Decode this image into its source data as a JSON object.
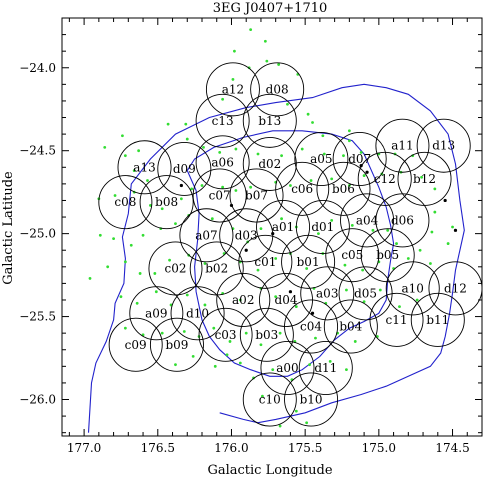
{
  "chart_data": {
    "type": "scatter",
    "title": "3EG J0407+1710",
    "xlabel": "Galactic Longitude",
    "ylabel": "Galactic Latitude",
    "xlim": [
      177.15,
      174.3
    ],
    "ylim": [
      -26.22,
      -23.7
    ],
    "x_reversed": true,
    "x_ticks": [
      177.0,
      176.5,
      176.0,
      175.5,
      175.0,
      174.5
    ],
    "y_ticks": [
      -24.0,
      -24.5,
      -25.0,
      -25.5,
      -26.0
    ],
    "x_tick_labels": [
      "177.0",
      "176.5",
      "176.0",
      "175.5",
      "175.0",
      "174.5"
    ],
    "y_tick_labels": [
      "−24.0",
      "−24.5",
      "−25.0",
      "−25.5",
      "−26.0"
    ],
    "grid": false,
    "legend": "none",
    "field_radius_deg": 0.16,
    "fields": [
      {
        "label": "a12",
        "l": 175.99,
        "b": -24.13
      },
      {
        "label": "d08",
        "l": 175.69,
        "b": -24.13
      },
      {
        "label": "c13",
        "l": 176.06,
        "b": -24.32
      },
      {
        "label": "b13",
        "l": 175.74,
        "b": -24.32
      },
      {
        "label": "a13",
        "l": 176.59,
        "b": -24.6
      },
      {
        "label": "d09",
        "l": 176.32,
        "b": -24.61
      },
      {
        "label": "a06",
        "l": 176.06,
        "b": -24.57
      },
      {
        "label": "d02",
        "l": 175.74,
        "b": -24.58
      },
      {
        "label": "a05",
        "l": 175.39,
        "b": -24.55
      },
      {
        "label": "d07",
        "l": 175.13,
        "b": -24.55
      },
      {
        "label": "a11",
        "l": 174.84,
        "b": -24.47
      },
      {
        "label": "d13",
        "l": 174.56,
        "b": -24.47
      },
      {
        "label": "c08",
        "l": 176.72,
        "b": -24.81
      },
      {
        "label": "b08",
        "l": 176.44,
        "b": -24.81
      },
      {
        "label": "c07",
        "l": 176.08,
        "b": -24.77
      },
      {
        "label": "b07",
        "l": 175.83,
        "b": -24.77
      },
      {
        "label": "c06",
        "l": 175.52,
        "b": -24.73
      },
      {
        "label": "b06",
        "l": 175.24,
        "b": -24.73
      },
      {
        "label": "c12",
        "l": 174.96,
        "b": -24.67
      },
      {
        "label": "b12",
        "l": 174.69,
        "b": -24.67
      },
      {
        "label": "a07",
        "l": 176.17,
        "b": -25.01
      },
      {
        "label": "d03",
        "l": 175.9,
        "b": -25.01
      },
      {
        "label": "a01",
        "l": 175.65,
        "b": -24.96
      },
      {
        "label": "d01",
        "l": 175.38,
        "b": -24.96
      },
      {
        "label": "a04",
        "l": 175.08,
        "b": -24.92
      },
      {
        "label": "d06",
        "l": 174.84,
        "b": -24.92
      },
      {
        "label": "c02",
        "l": 176.38,
        "b": -25.21
      },
      {
        "label": "b02",
        "l": 176.1,
        "b": -25.21
      },
      {
        "label": "c01",
        "l": 175.77,
        "b": -25.17
      },
      {
        "label": "b01",
        "l": 175.48,
        "b": -25.17
      },
      {
        "label": "c05",
        "l": 175.18,
        "b": -25.13
      },
      {
        "label": "b05",
        "l": 174.94,
        "b": -25.13
      },
      {
        "label": "a10",
        "l": 174.77,
        "b": -25.33
      },
      {
        "label": "d12",
        "l": 174.48,
        "b": -25.33
      },
      {
        "label": "a02",
        "l": 175.92,
        "b": -25.4
      },
      {
        "label": "d04",
        "l": 175.63,
        "b": -25.4
      },
      {
        "label": "a03",
        "l": 175.35,
        "b": -25.36
      },
      {
        "label": "d05",
        "l": 175.09,
        "b": -25.36
      },
      {
        "label": "a09",
        "l": 176.51,
        "b": -25.48
      },
      {
        "label": "d10",
        "l": 176.23,
        "b": -25.48
      },
      {
        "label": "c11",
        "l": 174.88,
        "b": -25.52
      },
      {
        "label": "b11",
        "l": 174.6,
        "b": -25.52
      },
      {
        "label": "c03",
        "l": 176.04,
        "b": -25.61
      },
      {
        "label": "b03",
        "l": 175.76,
        "b": -25.61
      },
      {
        "label": "c04",
        "l": 175.46,
        "b": -25.56
      },
      {
        "label": "b04",
        "l": 175.19,
        "b": -25.56
      },
      {
        "label": "c09",
        "l": 176.65,
        "b": -25.67
      },
      {
        "label": "b09",
        "l": 176.37,
        "b": -25.67
      },
      {
        "label": "a00",
        "l": 175.62,
        "b": -25.81
      },
      {
        "label": "d11",
        "l": 175.36,
        "b": -25.81
      },
      {
        "label": "c10",
        "l": 175.74,
        "b": -26.0
      },
      {
        "label": "b10",
        "l": 175.46,
        "b": -26.0
      }
    ],
    "contours": [
      [
        [
          176.97,
          -26.2
        ],
        [
          176.96,
          -26.05
        ],
        [
          176.95,
          -25.9
        ],
        [
          176.92,
          -25.78
        ],
        [
          176.85,
          -25.65
        ],
        [
          176.8,
          -25.52
        ],
        [
          176.79,
          -25.42
        ],
        [
          176.73,
          -25.3
        ],
        [
          176.72,
          -25.15
        ],
        [
          176.74,
          -25.02
        ],
        [
          176.7,
          -24.88
        ],
        [
          176.68,
          -24.7
        ],
        [
          176.55,
          -24.55
        ],
        [
          176.38,
          -24.4
        ],
        [
          176.15,
          -24.3
        ],
        [
          175.9,
          -24.24
        ],
        [
          175.7,
          -24.21
        ],
        [
          175.45,
          -24.18
        ],
        [
          175.25,
          -24.12
        ],
        [
          175.1,
          -24.1
        ],
        [
          174.95,
          -24.12
        ],
        [
          174.8,
          -24.16
        ],
        [
          174.65,
          -24.26
        ],
        [
          174.53,
          -24.4
        ],
        [
          174.48,
          -24.58
        ],
        [
          174.45,
          -24.8
        ],
        [
          174.42,
          -24.98
        ],
        [
          174.45,
          -25.1
        ],
        [
          174.48,
          -25.22
        ],
        [
          174.5,
          -25.36
        ],
        [
          174.52,
          -25.48
        ],
        [
          174.55,
          -25.62
        ],
        [
          174.58,
          -25.72
        ],
        [
          174.65,
          -25.8
        ],
        [
          174.8,
          -25.86
        ],
        [
          174.95,
          -25.92
        ],
        [
          175.12,
          -25.97
        ],
        [
          175.32,
          -26.02
        ],
        [
          175.5,
          -26.08
        ],
        [
          175.7,
          -26.12
        ],
        [
          175.82,
          -26.14
        ],
        [
          175.92,
          -26.12
        ],
        [
          176.08,
          -26.08
        ]
      ],
      [
        [
          176.3,
          -24.62
        ],
        [
          176.24,
          -24.74
        ],
        [
          176.22,
          -24.88
        ],
        [
          176.23,
          -25.04
        ],
        [
          176.25,
          -25.2
        ],
        [
          176.24,
          -25.35
        ],
        [
          176.2,
          -25.52
        ],
        [
          176.15,
          -25.62
        ],
        [
          176.08,
          -25.7
        ],
        [
          175.98,
          -25.78
        ],
        [
          175.87,
          -25.82
        ],
        [
          175.74,
          -25.86
        ],
        [
          175.62,
          -25.86
        ],
        [
          175.52,
          -25.82
        ],
        [
          175.4,
          -25.74
        ],
        [
          175.3,
          -25.64
        ],
        [
          175.2,
          -25.57
        ],
        [
          175.1,
          -25.53
        ],
        [
          175.0,
          -25.48
        ],
        [
          174.95,
          -25.4
        ],
        [
          174.94,
          -25.28
        ],
        [
          174.92,
          -25.16
        ],
        [
          174.9,
          -25.06
        ],
        [
          174.92,
          -24.95
        ],
        [
          174.95,
          -24.84
        ],
        [
          175.0,
          -24.72
        ],
        [
          175.06,
          -24.6
        ],
        [
          175.1,
          -24.52
        ],
        [
          175.18,
          -24.44
        ],
        [
          175.32,
          -24.4
        ],
        [
          175.52,
          -24.38
        ],
        [
          175.72,
          -24.38
        ],
        [
          175.92,
          -24.42
        ],
        [
          176.12,
          -24.48
        ],
        [
          176.25,
          -24.55
        ],
        [
          176.3,
          -24.62
        ]
      ]
    ],
    "green_points": [
      [
        175.87,
        -23.77
      ],
      [
        175.77,
        -23.84
      ],
      [
        175.76,
        -23.96
      ],
      [
        175.98,
        -23.9
      ],
      [
        175.88,
        -24.0
      ],
      [
        175.68,
        -23.98
      ],
      [
        175.55,
        -24.04
      ],
      [
        175.99,
        -24.07
      ],
      [
        176.06,
        -24.19
      ],
      [
        175.62,
        -24.22
      ],
      [
        175.48,
        -24.28
      ],
      [
        175.45,
        -24.33
      ],
      [
        175.38,
        -24.41
      ],
      [
        175.2,
        -24.38
      ],
      [
        175.2,
        -24.44
      ],
      [
        176.43,
        -24.34
      ],
      [
        176.31,
        -24.34
      ],
      [
        176.3,
        -24.43
      ],
      [
        176.19,
        -24.48
      ],
      [
        176.08,
        -24.51
      ],
      [
        175.97,
        -24.49
      ],
      [
        175.82,
        -24.52
      ],
      [
        175.66,
        -24.53
      ],
      [
        175.52,
        -24.49
      ],
      [
        175.37,
        -24.52
      ],
      [
        175.24,
        -24.53
      ],
      [
        175.12,
        -24.51
      ],
      [
        175.0,
        -24.52
      ],
      [
        174.89,
        -24.52
      ],
      [
        174.77,
        -24.53
      ],
      [
        176.74,
        -24.41
      ],
      [
        176.86,
        -24.48
      ],
      [
        176.72,
        -24.53
      ],
      [
        176.63,
        -24.5
      ],
      [
        176.66,
        -24.62
      ],
      [
        176.57,
        -24.68
      ],
      [
        176.66,
        -24.75
      ],
      [
        176.79,
        -24.77
      ],
      [
        176.9,
        -24.79
      ],
      [
        176.55,
        -24.83
      ],
      [
        176.47,
        -24.85
      ],
      [
        176.34,
        -24.79
      ],
      [
        176.27,
        -24.73
      ],
      [
        176.2,
        -24.71
      ],
      [
        176.06,
        -24.72
      ],
      [
        175.97,
        -24.74
      ],
      [
        175.87,
        -24.72
      ],
      [
        175.7,
        -24.69
      ],
      [
        175.6,
        -24.71
      ],
      [
        175.46,
        -24.68
      ],
      [
        175.32,
        -24.67
      ],
      [
        175.2,
        -24.71
      ],
      [
        175.1,
        -24.65
      ],
      [
        174.98,
        -24.64
      ],
      [
        174.85,
        -24.63
      ],
      [
        174.71,
        -24.66
      ],
      [
        174.62,
        -24.73
      ],
      [
        174.62,
        -24.87
      ],
      [
        174.64,
        -24.99
      ],
      [
        174.72,
        -25.1
      ],
      [
        174.65,
        -25.18
      ],
      [
        174.53,
        -25.06
      ],
      [
        174.5,
        -24.96
      ],
      [
        176.89,
        -25.01
      ],
      [
        176.8,
        -25.03
      ],
      [
        176.68,
        -25.07
      ],
      [
        176.6,
        -25.01
      ],
      [
        176.48,
        -24.97
      ],
      [
        176.38,
        -24.94
      ],
      [
        176.29,
        -24.89
      ],
      [
        176.13,
        -24.91
      ],
      [
        175.99,
        -24.97
      ],
      [
        175.89,
        -25.05
      ],
      [
        175.8,
        -24.97
      ],
      [
        175.66,
        -24.91
      ],
      [
        175.56,
        -24.96
      ],
      [
        175.41,
        -25.0
      ],
      [
        175.32,
        -24.92
      ],
      [
        175.18,
        -24.95
      ],
      [
        175.04,
        -24.98
      ],
      [
        174.94,
        -24.98
      ],
      [
        174.88,
        -25.06
      ],
      [
        174.8,
        -25.15
      ],
      [
        176.96,
        -25.27
      ],
      [
        176.84,
        -25.2
      ],
      [
        176.72,
        -25.17
      ],
      [
        176.62,
        -25.24
      ],
      [
        176.52,
        -25.24
      ],
      [
        176.42,
        -25.16
      ],
      [
        176.29,
        -25.13
      ],
      [
        176.18,
        -25.18
      ],
      [
        176.05,
        -25.12
      ],
      [
        175.94,
        -25.17
      ],
      [
        175.82,
        -25.22
      ],
      [
        175.7,
        -25.15
      ],
      [
        175.6,
        -25.12
      ],
      [
        175.49,
        -25.21
      ],
      [
        175.38,
        -25.12
      ],
      [
        175.23,
        -25.19
      ],
      [
        175.11,
        -25.22
      ],
      [
        175.0,
        -25.17
      ],
      [
        174.9,
        -25.21
      ],
      [
        176.75,
        -25.38
      ],
      [
        176.64,
        -25.42
      ],
      [
        176.51,
        -25.35
      ],
      [
        176.41,
        -25.43
      ],
      [
        176.3,
        -25.37
      ],
      [
        176.18,
        -25.43
      ],
      [
        176.06,
        -25.36
      ],
      [
        175.94,
        -25.4
      ],
      [
        175.8,
        -25.33
      ],
      [
        175.7,
        -25.38
      ],
      [
        175.56,
        -25.44
      ],
      [
        175.44,
        -25.33
      ],
      [
        175.36,
        -25.42
      ],
      [
        175.22,
        -25.34
      ],
      [
        175.1,
        -25.41
      ],
      [
        174.99,
        -25.34
      ],
      [
        174.86,
        -25.44
      ],
      [
        174.74,
        -25.4
      ],
      [
        176.72,
        -25.57
      ],
      [
        176.6,
        -25.61
      ],
      [
        176.47,
        -25.6
      ],
      [
        176.32,
        -25.59
      ],
      [
        176.22,
        -25.62
      ],
      [
        176.12,
        -25.57
      ],
      [
        176.01,
        -25.65
      ],
      [
        175.9,
        -25.6
      ],
      [
        175.8,
        -25.67
      ],
      [
        175.67,
        -25.6
      ],
      [
        175.57,
        -25.65
      ],
      [
        175.43,
        -25.63
      ],
      [
        175.28,
        -25.6
      ],
      [
        175.16,
        -25.65
      ],
      [
        175.01,
        -25.62
      ],
      [
        176.38,
        -25.79
      ],
      [
        176.26,
        -25.74
      ],
      [
        176.11,
        -25.8
      ],
      [
        176.03,
        -25.73
      ],
      [
        175.94,
        -25.78
      ],
      [
        175.85,
        -25.87
      ],
      [
        175.72,
        -25.82
      ],
      [
        175.59,
        -25.88
      ],
      [
        175.47,
        -25.79
      ],
      [
        175.33,
        -25.77
      ],
      [
        175.22,
        -25.82
      ],
      [
        175.56,
        -26.07
      ],
      [
        175.49,
        -26.14
      ],
      [
        175.67,
        -26.16
      ],
      [
        175.79,
        -25.98
      ]
    ],
    "black_points": [
      [
        175.12,
        -24.59
      ],
      [
        175.08,
        -24.63
      ],
      [
        176.34,
        -24.71
      ],
      [
        176.0,
        -24.83
      ],
      [
        174.55,
        -24.8
      ],
      [
        174.48,
        -24.98
      ],
      [
        175.9,
        -25.1
      ],
      [
        175.72,
        -25.0
      ],
      [
        175.6,
        -25.35
      ],
      [
        175.45,
        -25.48
      ]
    ]
  }
}
